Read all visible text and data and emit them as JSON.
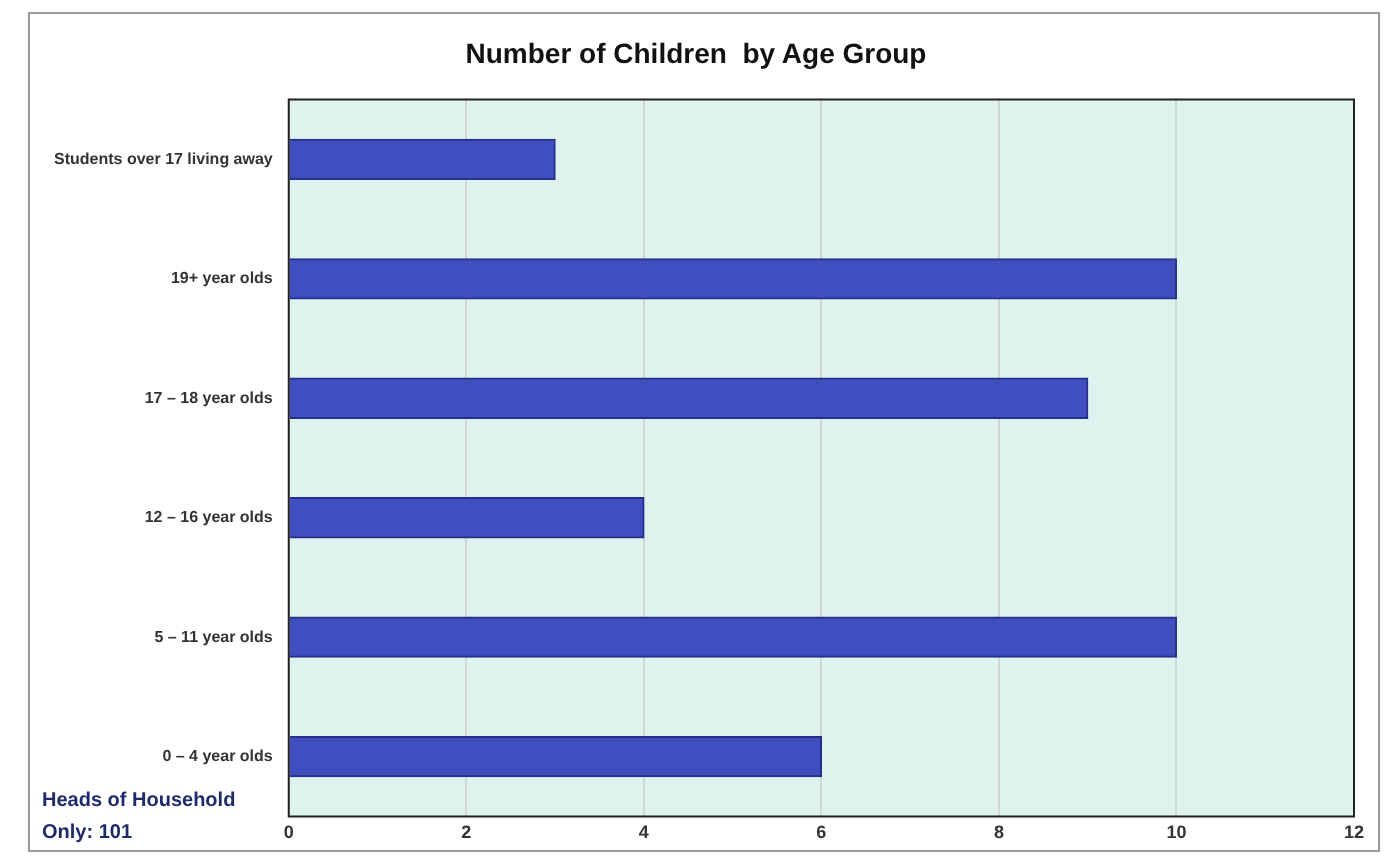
{
  "chart_data": {
    "type": "bar",
    "orientation": "horizontal",
    "title": "Number of Children  by Age Group",
    "categories": [
      "Students over 17 living away",
      "19+ year olds",
      "17 – 18 year olds",
      "12 – 16 year olds",
      "5 – 11 year olds",
      "0 – 4 year olds"
    ],
    "values": [
      3,
      10,
      9,
      4,
      10,
      6
    ],
    "color": "#3f4fc0",
    "xlim": [
      0,
      12
    ],
    "xticks": [
      0,
      2,
      4,
      6,
      8,
      10,
      12
    ],
    "grid": "x",
    "annotations": [
      "Heads of Household Only: 101"
    ]
  }
}
